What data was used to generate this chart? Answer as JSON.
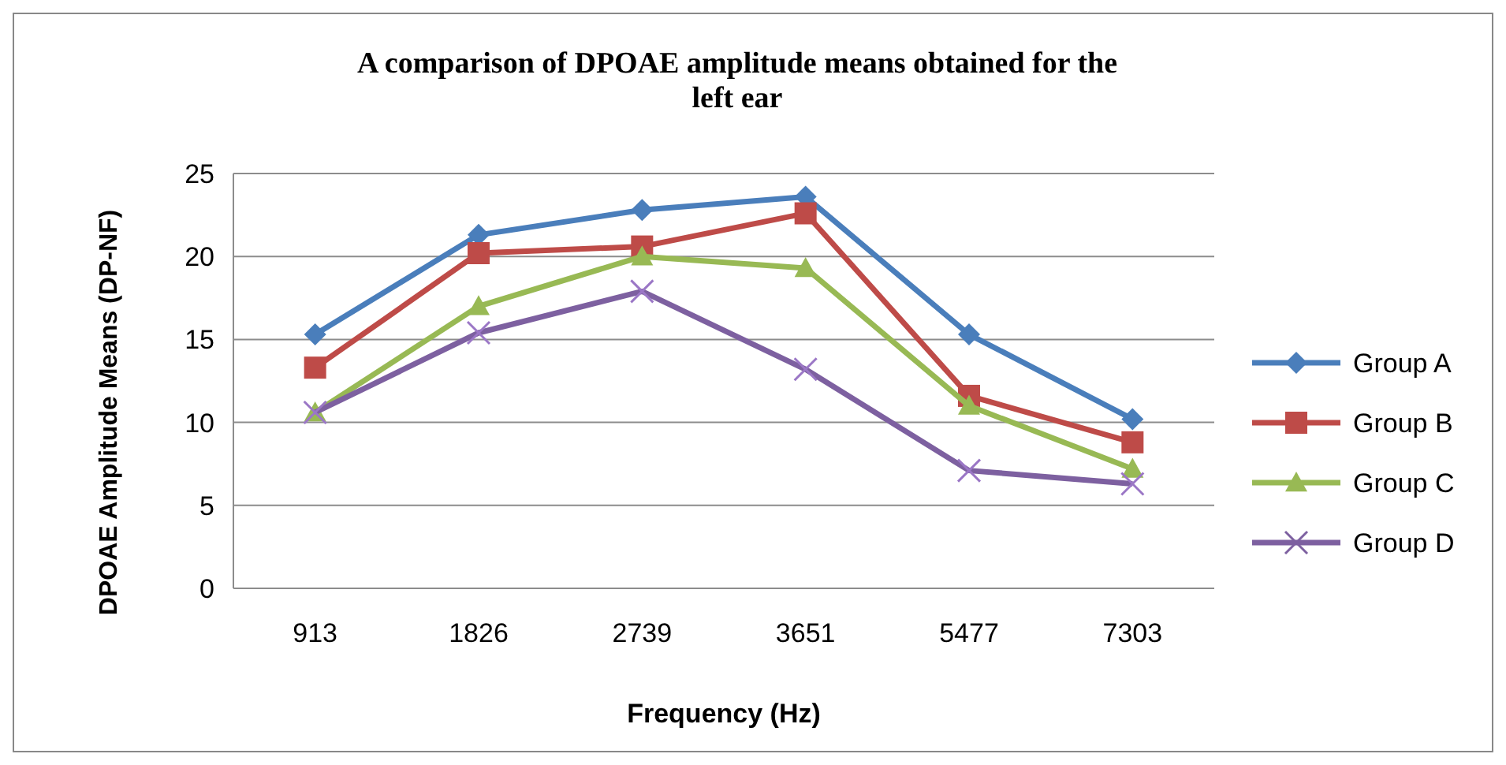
{
  "chart_data": {
    "type": "line",
    "title": "A comparison of DPOAE amplitude means obtained for the left ear",
    "xlabel": "Frequency (Hz)",
    "ylabel": "DPOAE Amplitude Means (DP-NF)",
    "categories": [
      "913",
      "1826",
      "2739",
      "3651",
      "5477",
      "7303"
    ],
    "ylim": [
      0,
      25
    ],
    "yticks": [
      0,
      5,
      10,
      15,
      20,
      25
    ],
    "grid": "y",
    "legend": "right",
    "series": [
      {
        "name": "Group A",
        "color": "#4a7ebb",
        "marker": "diamond",
        "values": [
          15.3,
          21.3,
          22.8,
          23.6,
          15.3,
          10.2
        ]
      },
      {
        "name": "Group B",
        "color": "#be4b48",
        "marker": "square",
        "values": [
          13.3,
          20.2,
          20.6,
          22.6,
          11.6,
          8.8
        ]
      },
      {
        "name": "Group C",
        "color": "#98b954",
        "marker": "triangle",
        "values": [
          10.6,
          17.0,
          20.0,
          19.3,
          11.0,
          7.2
        ]
      },
      {
        "name": "Group D",
        "color": "#7d60a0",
        "marker": "cross",
        "values": [
          10.6,
          15.4,
          17.9,
          13.2,
          7.1,
          6.3
        ]
      }
    ]
  }
}
